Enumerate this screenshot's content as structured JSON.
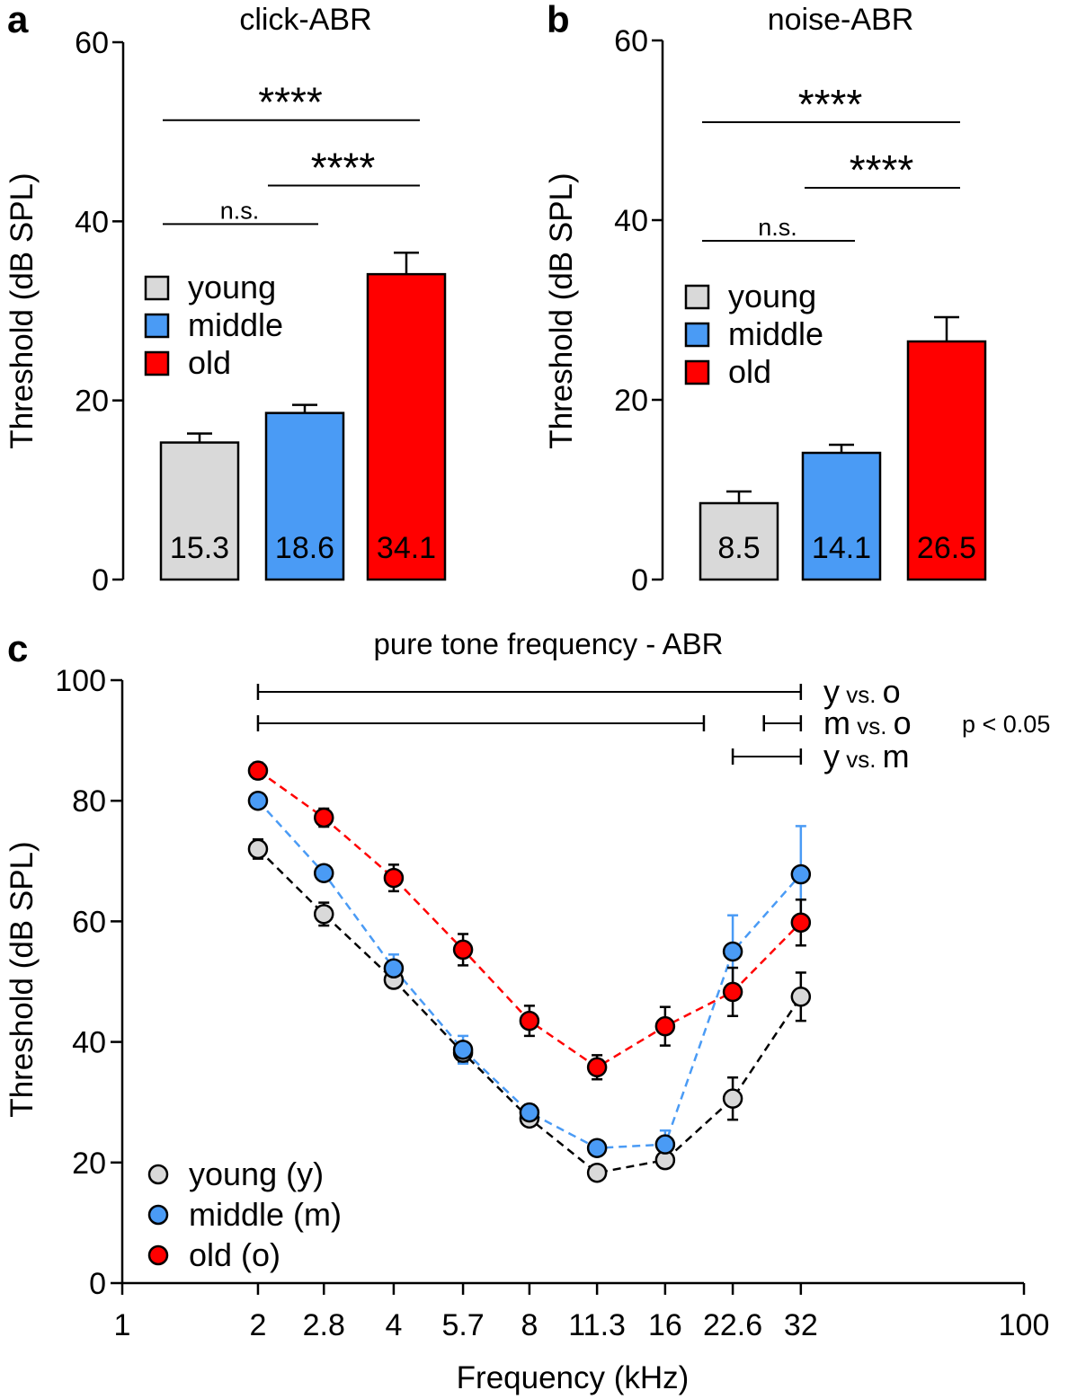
{
  "colors": {
    "young": "#d9d9d9",
    "middle": "#4a9bf5",
    "old": "#ff0000",
    "axis": "#000000"
  },
  "chart_data": [
    {
      "panel": "a",
      "type": "bar",
      "title": "click-ABR",
      "ylabel": "Threshold (dB SPL)",
      "ylim": [
        0,
        60
      ],
      "yticks": [
        0,
        20,
        40,
        60
      ],
      "categories": [
        "young",
        "middle",
        "old"
      ],
      "values": [
        15.3,
        18.6,
        34.1
      ],
      "value_labels": [
        "15.3",
        "18.6",
        "34.1"
      ],
      "errors": [
        1.0,
        0.9,
        2.4
      ],
      "legend": [
        "young",
        "middle",
        "old"
      ],
      "significance": [
        {
          "from": "young",
          "to": "old",
          "label": "****",
          "y": 51.3
        },
        {
          "from": "middle",
          "to": "old",
          "label": "****",
          "y": 44.0
        },
        {
          "from": "young",
          "to": "middle",
          "label": "n.s.",
          "y": 39.7
        }
      ]
    },
    {
      "panel": "b",
      "type": "bar",
      "title": "noise-ABR",
      "ylabel": "Threshold (dB SPL)",
      "ylim": [
        0,
        60
      ],
      "yticks": [
        0,
        20,
        40,
        60
      ],
      "categories": [
        "young",
        "middle",
        "old"
      ],
      "values": [
        8.5,
        14.1,
        26.5
      ],
      "value_labels": [
        "8.5",
        "14.1",
        "26.5"
      ],
      "errors": [
        1.3,
        0.9,
        2.7
      ],
      "legend": [
        "young",
        "middle",
        "old"
      ],
      "significance": [
        {
          "from": "young",
          "to": "old",
          "label": "****",
          "y": 50.9
        },
        {
          "from": "middle",
          "to": "old",
          "label": "****",
          "y": 43.6
        },
        {
          "from": "young",
          "to": "middle",
          "label": "n.s.",
          "y": 37.7
        }
      ]
    },
    {
      "panel": "c",
      "type": "line",
      "title": "pure tone frequency - ABR",
      "xlabel": "Frequency (kHz)",
      "ylabel": "Threshold (dB SPL)",
      "xscale": "log",
      "xlim": [
        1,
        100
      ],
      "ylim": [
        0,
        100
      ],
      "yticks": [
        0,
        20,
        40,
        60,
        80,
        100
      ],
      "xticks": [
        1,
        2,
        2.8,
        4,
        5.7,
        8,
        11.3,
        16,
        22.6,
        32,
        100
      ],
      "xtick_labels": [
        "1",
        "2",
        "2.8",
        "4",
        "5.7",
        "8",
        "11.3",
        "16",
        "22.6",
        "32",
        "100"
      ],
      "x": [
        2,
        2.8,
        4,
        5.7,
        8,
        11.3,
        16,
        22.6,
        32
      ],
      "series": [
        {
          "name": "young (y)",
          "key": "young",
          "values": [
            72.0,
            61.2,
            50.3,
            38.2,
            27.3,
            18.3,
            20.4,
            30.6,
            47.5
          ],
          "errors": [
            1.6,
            1.9,
            1.3,
            1.6,
            1.2,
            0.9,
            1.3,
            3.5,
            4.0
          ]
        },
        {
          "name": "middle (m)",
          "key": "middle",
          "values": [
            80.0,
            68.0,
            52.2,
            38.7,
            28.3,
            22.4,
            23.0,
            55.0,
            67.8
          ],
          "errors": [
            1.0,
            1.2,
            2.3,
            2.3,
            1.3,
            1.0,
            2.3,
            6.0,
            8.0
          ]
        },
        {
          "name": "old (o)",
          "key": "old",
          "values": [
            85.0,
            77.2,
            67.2,
            55.3,
            43.5,
            35.8,
            42.6,
            48.3,
            59.8
          ],
          "errors": [
            1.3,
            1.5,
            2.2,
            2.6,
            2.5,
            2.0,
            3.2,
            4.0,
            3.8
          ]
        }
      ],
      "significance_ranges": [
        {
          "label_left": "y",
          "label_mid": "vs.",
          "label_right": "o",
          "from_khz": 2,
          "to_khz": 32
        },
        {
          "label_left": "m",
          "label_mid": "vs.",
          "label_right": "o",
          "segments": [
            [
              2,
              19.5
            ],
            [
              26.5,
              32
            ]
          ]
        },
        {
          "label_left": "y",
          "label_mid": "vs.",
          "label_right": "m",
          "from_khz": 22.6,
          "to_khz": 32
        }
      ],
      "p_note": "p < 0.05",
      "legend": [
        "young (y)",
        "middle (m)",
        "old (o)"
      ]
    }
  ]
}
